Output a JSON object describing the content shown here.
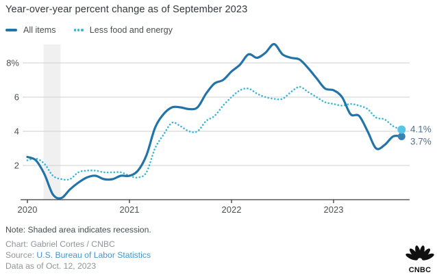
{
  "chart_data": {
    "type": "line",
    "title": "Year-over-year percent change as of September 2023",
    "x": {
      "unit": "month",
      "start": "Jan 2020",
      "end": "Sep 2023",
      "tick_labels": [
        "2020",
        "2021",
        "2022",
        "2023"
      ]
    },
    "y": {
      "range": [
        0,
        9.5
      ],
      "ticks": [
        {
          "value": 8,
          "label": "8%"
        },
        {
          "value": 6,
          "label": "6"
        },
        {
          "value": 4,
          "label": "4"
        },
        {
          "value": 2,
          "label": "2"
        }
      ]
    },
    "grid": true,
    "grid_color": "#cfcfcf",
    "axis_color": "#33383d",
    "end_label_color": "#54708a",
    "legend_position": "top",
    "recession_band": {
      "label": "recession",
      "from_month_index": 1.9,
      "to_month_index": 3.9,
      "color": "#f0f0f0"
    },
    "series": [
      {
        "name": "All items",
        "style": "solid",
        "color": "#2273a8",
        "dot_color": "#3b82b4",
        "end_label": "3.7%",
        "values": [
          2.5,
          2.3,
          1.5,
          0.3,
          0.1,
          0.6,
          1.0,
          1.3,
          1.4,
          1.2,
          1.2,
          1.4,
          1.4,
          1.7,
          2.6,
          4.2,
          5.0,
          5.4,
          5.4,
          5.3,
          5.4,
          6.2,
          6.8,
          7.0,
          7.5,
          7.9,
          8.5,
          8.3,
          8.6,
          9.1,
          8.5,
          8.3,
          8.2,
          7.7,
          7.1,
          6.5,
          6.4,
          6.0,
          5.0,
          4.9,
          4.0,
          3.0,
          3.2,
          3.7,
          3.7
        ]
      },
      {
        "name": "Less food and energy",
        "style": "dotted",
        "color": "#35b7d9",
        "dot_color": "#56c5e6",
        "end_label": "4.1%",
        "values": [
          2.3,
          2.4,
          2.1,
          1.4,
          1.2,
          1.2,
          1.6,
          1.7,
          1.7,
          1.6,
          1.6,
          1.6,
          1.4,
          1.3,
          1.6,
          3.0,
          3.8,
          4.5,
          4.3,
          4.0,
          4.0,
          4.6,
          4.9,
          5.5,
          6.0,
          6.4,
          6.5,
          6.2,
          6.0,
          5.9,
          5.9,
          6.3,
          6.6,
          6.3,
          6.0,
          5.7,
          5.6,
          5.5,
          5.6,
          5.5,
          5.3,
          4.8,
          4.7,
          4.3,
          4.1
        ]
      }
    ]
  },
  "footer": {
    "note": "Note: Shaded area indicates recession.",
    "credit": "Chart: Gabriel Cortes / CNBC",
    "source_prefix": "Source: ",
    "source_link": "U.S. Bureau of Labor Statistics",
    "data_as_of": "Data as of Oct. 12, 2023"
  },
  "logo": {
    "name": "CNBC"
  }
}
